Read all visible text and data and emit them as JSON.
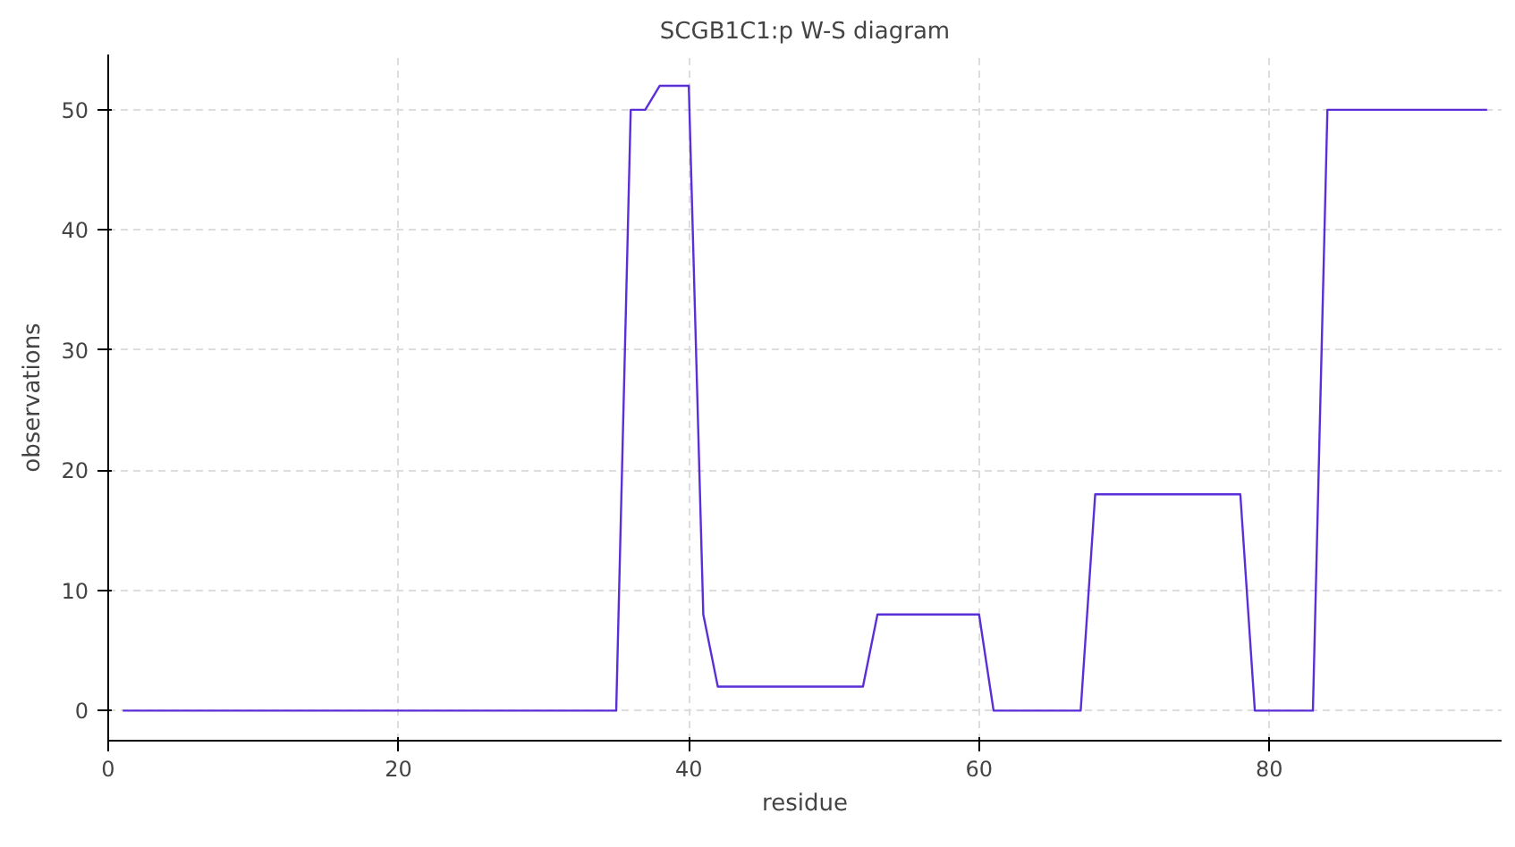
{
  "chart_data": {
    "type": "line",
    "title": "SCGB1C1:p W-S diagram",
    "xlabel": "residue",
    "ylabel": "observations",
    "x": [
      1,
      35,
      36,
      37,
      38,
      40,
      41,
      42,
      52,
      53,
      60,
      61,
      67,
      68,
      78,
      79,
      83,
      84,
      95
    ],
    "series": [
      {
        "color": "#5b2fd8",
        "values": [
          0,
          0,
          50,
          50,
          52,
          52,
          8,
          2,
          2,
          8,
          8,
          0,
          0,
          18,
          18,
          0,
          0,
          50,
          50
        ]
      }
    ],
    "xlim": [
      0,
      96
    ],
    "ylim": [
      -2.5,
      54.6
    ],
    "xticks": [
      0,
      20,
      40,
      60,
      80
    ],
    "yticks": [
      0,
      10,
      20,
      30,
      40,
      50
    ],
    "grid": true,
    "marker": "none",
    "line_style": "solid"
  }
}
